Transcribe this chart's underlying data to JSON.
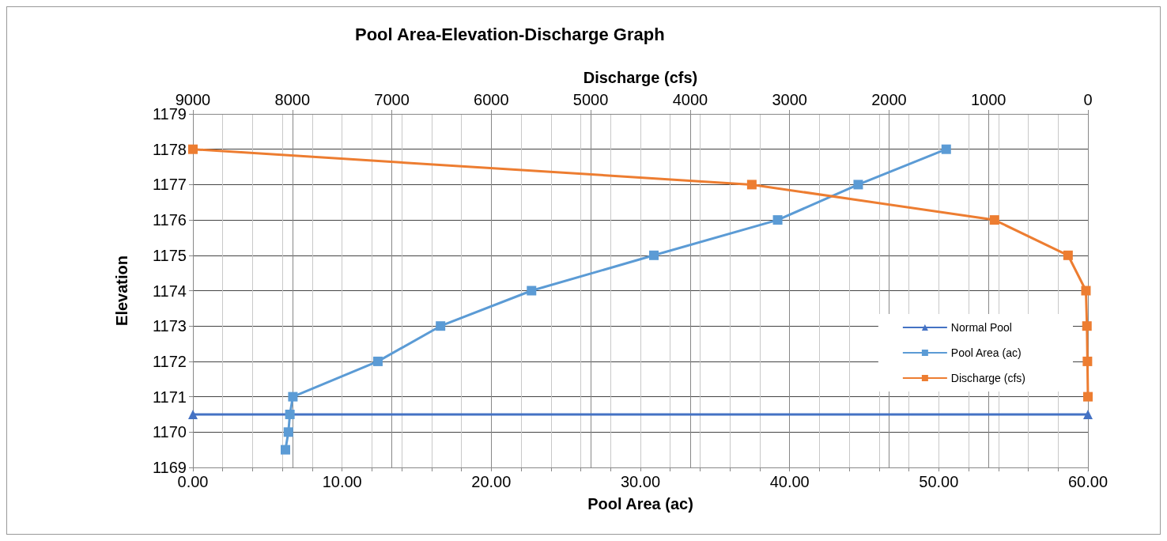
{
  "chart_data": {
    "type": "line",
    "title": "Pool Area-Elevation-Discharge Graph",
    "xlabel": "Pool Area (ac)",
    "x2label": "Discharge (cfs)",
    "ylabel": "Elevation",
    "xlim": [
      0,
      60
    ],
    "xticks": [
      {
        "value": 0,
        "label": "0.00"
      },
      {
        "value": 2,
        "label": null
      },
      {
        "value": 4,
        "label": null
      },
      {
        "value": 6,
        "label": null
      },
      {
        "value": 8,
        "label": null
      },
      {
        "value": 10,
        "label": "10.00"
      },
      {
        "value": 12,
        "label": null
      },
      {
        "value": 14,
        "label": null
      },
      {
        "value": 16,
        "label": null
      },
      {
        "value": 18,
        "label": null
      },
      {
        "value": 20,
        "label": "20.00"
      },
      {
        "value": 22,
        "label": null
      },
      {
        "value": 24,
        "label": null
      },
      {
        "value": 26,
        "label": null
      },
      {
        "value": 28,
        "label": null
      },
      {
        "value": 30,
        "label": "30.00"
      },
      {
        "value": 32,
        "label": null
      },
      {
        "value": 34,
        "label": null
      },
      {
        "value": 36,
        "label": null
      },
      {
        "value": 38,
        "label": null
      },
      {
        "value": 40,
        "label": "40.00"
      },
      {
        "value": 42,
        "label": null
      },
      {
        "value": 44,
        "label": null
      },
      {
        "value": 46,
        "label": null
      },
      {
        "value": 48,
        "label": null
      },
      {
        "value": 50,
        "label": "50.00"
      },
      {
        "value": 52,
        "label": null
      },
      {
        "value": 54,
        "label": null
      },
      {
        "value": 56,
        "label": null
      },
      {
        "value": 58,
        "label": null
      },
      {
        "value": 60,
        "label": "60.00"
      }
    ],
    "x2lim": [
      9000,
      0
    ],
    "x2ticks": [
      9000,
      8000,
      7000,
      6000,
      5000,
      4000,
      3000,
      2000,
      1000,
      0
    ],
    "ylim": [
      1169,
      1179
    ],
    "yticks": [
      1169,
      1170,
      1171,
      1172,
      1173,
      1174,
      1175,
      1176,
      1177,
      1178,
      1179
    ],
    "grid": true,
    "legend": "bottom right",
    "series": [
      {
        "name": "Normal Pool",
        "color": "#4472c4",
        "marker": "triangle",
        "x": [
          0,
          60
        ],
        "values": [
          1170.5,
          1170.5
        ]
      },
      {
        "name": "Pool Area (ac)",
        "color": "#5b9bd5",
        "marker": "square",
        "x": [
          6.2,
          6.4,
          6.5,
          6.7,
          12.4,
          16.6,
          22.7,
          30.9,
          39.2,
          44.6,
          50.5
        ],
        "values": [
          1169.5,
          1170,
          1170.5,
          1171,
          1172,
          1173,
          1174,
          1175,
          1176,
          1177,
          1178
        ]
      },
      {
        "name": "Discharge (cfs)",
        "color": "#ed7d31",
        "marker": "square",
        "axis": "x2",
        "x": [
          0,
          5,
          10,
          20,
          200,
          940,
          3380,
          9000
        ],
        "values": [
          1171,
          1172,
          1173,
          1174,
          1175,
          1176,
          1177,
          1178
        ]
      }
    ]
  }
}
